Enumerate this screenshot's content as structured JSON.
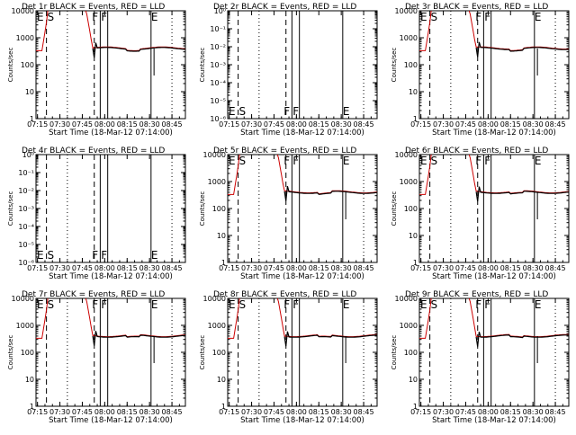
{
  "figure": {
    "background": "#ffffff",
    "axis_color": "#000000",
    "events_color": "#000000",
    "lld_color": "#cc0000",
    "marker_labels": [
      "E",
      "S",
      "F",
      "F",
      "E"
    ]
  },
  "chart_data": [
    {
      "type": "line",
      "title": "Det 1r BLACK = Events, RED = LLD",
      "xlabel": "Start Time (18-Mar-12 07:14:00)",
      "ylabel": "Counts/sec",
      "xticks": [
        "07:15",
        "07:30",
        "07:45",
        "08:00",
        "08:15",
        "08:30",
        "08:45"
      ],
      "yscale": "log",
      "ylim": [
        1,
        10000
      ],
      "yticklabels": [
        "1",
        "10",
        "100",
        "1000",
        "10000"
      ],
      "has_data": true,
      "series": [
        {
          "name": "Events",
          "color": "#000000"
        },
        {
          "name": "LLD",
          "color": "#cc0000"
        }
      ]
    },
    {
      "type": "line",
      "title": "Det 2r BLACK = Events, RED = LLD",
      "xlabel": "Start Time (18-Mar-12 07:14:00)",
      "ylabel": "Counts/sec",
      "xticks": [
        "07:15",
        "07:30",
        "07:45",
        "08:00",
        "08:15",
        "08:30",
        "08:45"
      ],
      "yscale": "log",
      "ylim": [
        1e-06,
        1
      ],
      "yticklabels": [
        "10⁻⁶",
        "10⁻⁵",
        "10⁻⁴",
        "10⁻³",
        "10⁻²",
        "10⁻¹",
        "10⁰"
      ],
      "has_data": false,
      "series": [
        {
          "name": "Events",
          "color": "#000000"
        },
        {
          "name": "LLD",
          "color": "#cc0000"
        }
      ]
    },
    {
      "type": "line",
      "title": "Det 3r BLACK = Events, RED = LLD",
      "xlabel": "Start Time (18-Mar-12 07:14:00)",
      "ylabel": "Counts/sec",
      "xticks": [
        "07:15",
        "07:30",
        "07:45",
        "08:00",
        "08:15",
        "08:30",
        "08:45"
      ],
      "yscale": "log",
      "ylim": [
        1,
        10000
      ],
      "yticklabels": [
        "1",
        "10",
        "100",
        "1000",
        "10000"
      ],
      "has_data": true,
      "series": [
        {
          "name": "Events",
          "color": "#000000"
        },
        {
          "name": "LLD",
          "color": "#cc0000"
        }
      ]
    },
    {
      "type": "line",
      "title": "Det 4r BLACK = Events, RED = LLD",
      "xlabel": "Start Time (18-Mar-12 07:14:00)",
      "ylabel": "Counts/sec",
      "xticks": [
        "07:15",
        "07:30",
        "07:45",
        "08:00",
        "08:15",
        "08:30",
        "08:45"
      ],
      "yscale": "log",
      "ylim": [
        1e-06,
        1
      ],
      "yticklabels": [
        "10⁻⁶",
        "10⁻⁵",
        "10⁻⁴",
        "10⁻³",
        "10⁻²",
        "10⁻¹",
        "10⁰"
      ],
      "has_data": false,
      "series": [
        {
          "name": "Events",
          "color": "#000000"
        },
        {
          "name": "LLD",
          "color": "#cc0000"
        }
      ]
    },
    {
      "type": "line",
      "title": "Det 5r BLACK = Events, RED = LLD",
      "xlabel": "Start Time (18-Mar-12 07:14:00)",
      "ylabel": "Counts/sec",
      "xticks": [
        "07:15",
        "07:30",
        "07:45",
        "08:00",
        "08:15",
        "08:30",
        "08:45"
      ],
      "yscale": "log",
      "ylim": [
        1,
        10000
      ],
      "yticklabels": [
        "1",
        "10",
        "100",
        "1000",
        "10000"
      ],
      "has_data": true,
      "series": [
        {
          "name": "Events",
          "color": "#000000"
        },
        {
          "name": "LLD",
          "color": "#cc0000"
        }
      ]
    },
    {
      "type": "line",
      "title": "Det 6r BLACK = Events, RED = LLD",
      "xlabel": "Start Time (18-Mar-12 07:14:00)",
      "ylabel": "Counts/sec",
      "xticks": [
        "07:15",
        "07:30",
        "07:45",
        "08:00",
        "08:15",
        "08:30",
        "08:45"
      ],
      "yscale": "log",
      "ylim": [
        1,
        10000
      ],
      "yticklabels": [
        "1",
        "10",
        "100",
        "1000",
        "10000"
      ],
      "has_data": true,
      "series": [
        {
          "name": "Events",
          "color": "#000000"
        },
        {
          "name": "LLD",
          "color": "#cc0000"
        }
      ]
    },
    {
      "type": "line",
      "title": "Det 7r BLACK = Events, RED = LLD",
      "xlabel": "Start Time (18-Mar-12 07:14:00)",
      "ylabel": "Counts/sec",
      "xticks": [
        "07:15",
        "07:30",
        "07:45",
        "08:00",
        "08:15",
        "08:30",
        "08:45"
      ],
      "yscale": "log",
      "ylim": [
        1,
        10000
      ],
      "yticklabels": [
        "1",
        "10",
        "100",
        "1000",
        "10000"
      ],
      "has_data": true,
      "series": [
        {
          "name": "Events",
          "color": "#000000"
        },
        {
          "name": "LLD",
          "color": "#cc0000"
        }
      ]
    },
    {
      "type": "line",
      "title": "Det 8r BLACK = Events, RED = LLD",
      "xlabel": "Start Time (18-Mar-12 07:14:00)",
      "ylabel": "Counts/sec",
      "xticks": [
        "07:15",
        "07:30",
        "07:45",
        "08:00",
        "08:15",
        "08:30",
        "08:45"
      ],
      "yscale": "log",
      "ylim": [
        1,
        10000
      ],
      "yticklabels": [
        "1",
        "10",
        "100",
        "1000",
        "10000"
      ],
      "has_data": true,
      "series": [
        {
          "name": "Events",
          "color": "#000000"
        },
        {
          "name": "LLD",
          "color": "#cc0000"
        }
      ]
    },
    {
      "type": "line",
      "title": "Det 9r BLACK = Events, RED = LLD",
      "xlabel": "Start Time (18-Mar-12 07:14:00)",
      "ylabel": "Counts/sec",
      "xticks": [
        "07:15",
        "07:30",
        "07:45",
        "08:00",
        "08:15",
        "08:30",
        "08:45"
      ],
      "yscale": "log",
      "ylim": [
        1,
        10000
      ],
      "yticklabels": [
        "1",
        "10",
        "100",
        "1000",
        "10000"
      ],
      "has_data": true,
      "series": [
        {
          "name": "Events",
          "color": "#000000"
        },
        {
          "name": "LLD",
          "color": "#cc0000"
        }
      ]
    }
  ]
}
